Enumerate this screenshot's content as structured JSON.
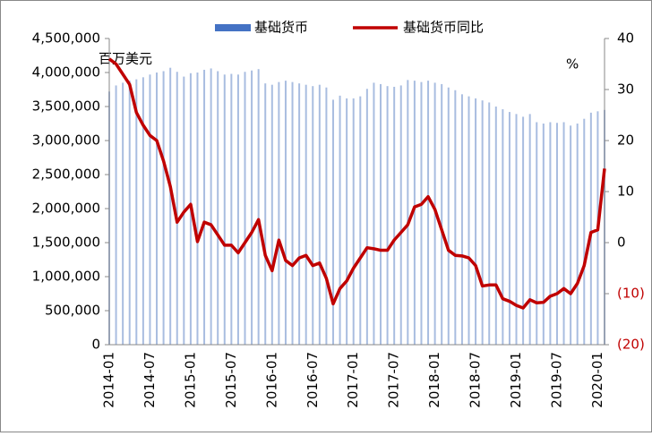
{
  "chart_data": {
    "type": "bar_line",
    "annotations": [
      "百万美元",
      "%"
    ],
    "categories": [
      "2014-01",
      null,
      null,
      null,
      null,
      null,
      "2014-07",
      null,
      null,
      null,
      null,
      null,
      "2015-01",
      null,
      null,
      null,
      null,
      null,
      "2015-07",
      null,
      null,
      null,
      null,
      null,
      "2016-01",
      null,
      null,
      null,
      null,
      null,
      "2016-07",
      null,
      null,
      null,
      null,
      null,
      "2017-01",
      null,
      null,
      null,
      null,
      null,
      "2017-07",
      null,
      null,
      null,
      null,
      null,
      "2018-01",
      null,
      null,
      null,
      null,
      null,
      "2018-07",
      null,
      null,
      null,
      null,
      null,
      "2019-01",
      null,
      null,
      null,
      null,
      null,
      "2019-07",
      null,
      null,
      null,
      null,
      null,
      "2020-01",
      null
    ],
    "series": [
      {
        "name": "基础货币",
        "type": "bar",
        "color": "#a9bde0",
        "legend_color": "#4472c4",
        "values": [
          3720000,
          3810000,
          3850000,
          3880000,
          3900000,
          3930000,
          3970000,
          4000000,
          4020000,
          4070000,
          4010000,
          3940000,
          3990000,
          4000000,
          4040000,
          4060000,
          4020000,
          3970000,
          3980000,
          3970000,
          4010000,
          4030000,
          4050000,
          3840000,
          3820000,
          3860000,
          3880000,
          3860000,
          3840000,
          3820000,
          3800000,
          3820000,
          3780000,
          3600000,
          3660000,
          3620000,
          3620000,
          3650000,
          3760000,
          3850000,
          3830000,
          3800000,
          3790000,
          3810000,
          3890000,
          3880000,
          3860000,
          3880000,
          3850000,
          3830000,
          3780000,
          3740000,
          3680000,
          3650000,
          3620000,
          3590000,
          3560000,
          3500000,
          3460000,
          3420000,
          3390000,
          3350000,
          3390000,
          3270000,
          3250000,
          3270000,
          3260000,
          3270000,
          3220000,
          3250000,
          3320000,
          3410000,
          3430000,
          3450000
        ]
      },
      {
        "name": "基础货币同比",
        "type": "line",
        "axis": "y2",
        "color": "#c00000",
        "values": [
          36,
          35,
          33,
          31,
          25.5,
          23,
          21,
          20,
          16,
          11,
          4,
          6,
          7.5,
          0.2,
          4,
          3.5,
          1.5,
          -0.5,
          -0.5,
          -2,
          0,
          2,
          4.5,
          -2.5,
          -5.5,
          0.5,
          -3.5,
          -4.5,
          -3,
          -2.5,
          -4.5,
          -4,
          -7,
          -12,
          -9,
          -7.5,
          -5,
          -3,
          -1,
          -1.2,
          -1.5,
          -1.5,
          0.5,
          2,
          3.5,
          7,
          7.5,
          9,
          6.5,
          2.5,
          -1.5,
          -2.5,
          -2.6,
          -3,
          -4.5,
          -8.5,
          -8.3,
          -8.3,
          -11,
          -11.5,
          -12.3,
          -12.8,
          -11.2,
          -11.8,
          -11.7,
          -10.5,
          -10,
          -9,
          -10,
          -8,
          -4.5,
          2,
          2.5,
          14.5
        ]
      }
    ],
    "ylim": [
      0,
      4500000
    ],
    "yticks": [
      0,
      {
        "value": 500000,
        "label": "500,000"
      },
      {
        "value": 1000000,
        "label": "1,000,000"
      },
      {
        "value": 1500000,
        "label": "1,500,000"
      },
      {
        "value": 2000000,
        "label": "2,000,000"
      },
      {
        "value": 2500000,
        "label": "2,500,000"
      },
      {
        "value": 3000000,
        "label": "3,000,000"
      },
      {
        "value": 3500000,
        "label": "3,500,000"
      },
      {
        "value": 4000000,
        "label": "4,000,000"
      },
      {
        "value": 4500000,
        "label": "4,500,000"
      }
    ],
    "y2lim": [
      -20,
      40
    ],
    "y2ticks": [
      {
        "value": -20,
        "label": "(20)"
      },
      {
        "value": -10,
        "label": "(10)"
      },
      0,
      10,
      20,
      30,
      40
    ],
    "negative_tick_color": "#c00000",
    "legend": "top"
  }
}
